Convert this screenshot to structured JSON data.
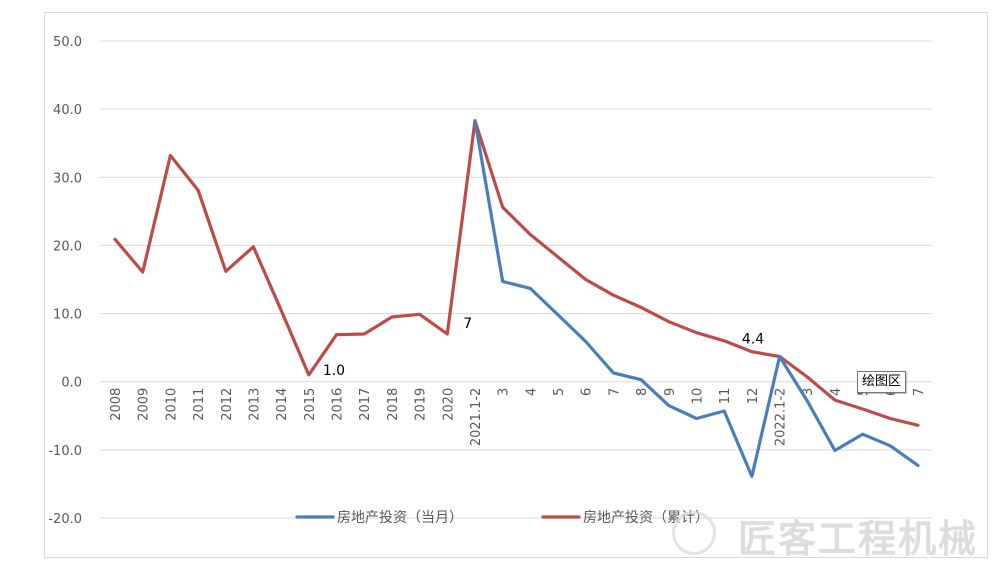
{
  "chart_data": {
    "type": "line",
    "title": "",
    "xlabel": "",
    "ylabel": "",
    "ylim": [
      -20,
      50
    ],
    "yticks": [
      "50.0",
      "40.0",
      "30.0",
      "20.0",
      "10.0",
      "0.0",
      "-10.0",
      "-20.0"
    ],
    "categories": [
      "2008",
      "2009",
      "2010",
      "2011",
      "2012",
      "2013",
      "2014",
      "2015",
      "2016",
      "2017",
      "2018",
      "2019",
      "2020",
      "2021.1-2",
      "3",
      "4",
      "5",
      "6",
      "7",
      "8",
      "9",
      "10",
      "11",
      "12",
      "2022.1-2",
      "3",
      "4",
      "5",
      "6",
      "7"
    ],
    "grid": true,
    "legend_position": "bottom",
    "series": [
      {
        "name": "房地产投资（当月）",
        "color": "#4a7ebb",
        "values": [
          null,
          null,
          null,
          null,
          null,
          null,
          null,
          null,
          null,
          null,
          null,
          null,
          null,
          38.3,
          14.7,
          13.7,
          9.8,
          5.9,
          1.3,
          0.3,
          -3.5,
          -5.4,
          -4.3,
          -13.9,
          3.7,
          -2.8,
          -10.1,
          -7.7,
          -9.4,
          -12.3
        ]
      },
      {
        "name": "房地产投资（累计）",
        "color": "#be4b48",
        "values": [
          20.9,
          16.1,
          33.2,
          28.1,
          16.2,
          19.8,
          10.5,
          1.0,
          6.9,
          7.0,
          9.5,
          9.9,
          7.0,
          38.3,
          25.6,
          21.6,
          18.3,
          15.0,
          12.7,
          10.9,
          8.8,
          7.2,
          6.0,
          4.4,
          3.7,
          0.7,
          -2.7,
          -4.0,
          -5.4,
          -6.4
        ]
      }
    ],
    "data_labels": [
      {
        "text": "1.0",
        "category": "2015",
        "value": 1.0
      },
      {
        "text": "7",
        "category": "2020",
        "value": 7.0
      },
      {
        "text": "4.4",
        "category": "12",
        "value": 4.4
      }
    ]
  },
  "tooltip": "绘图区",
  "watermark": "匠客工程机械"
}
